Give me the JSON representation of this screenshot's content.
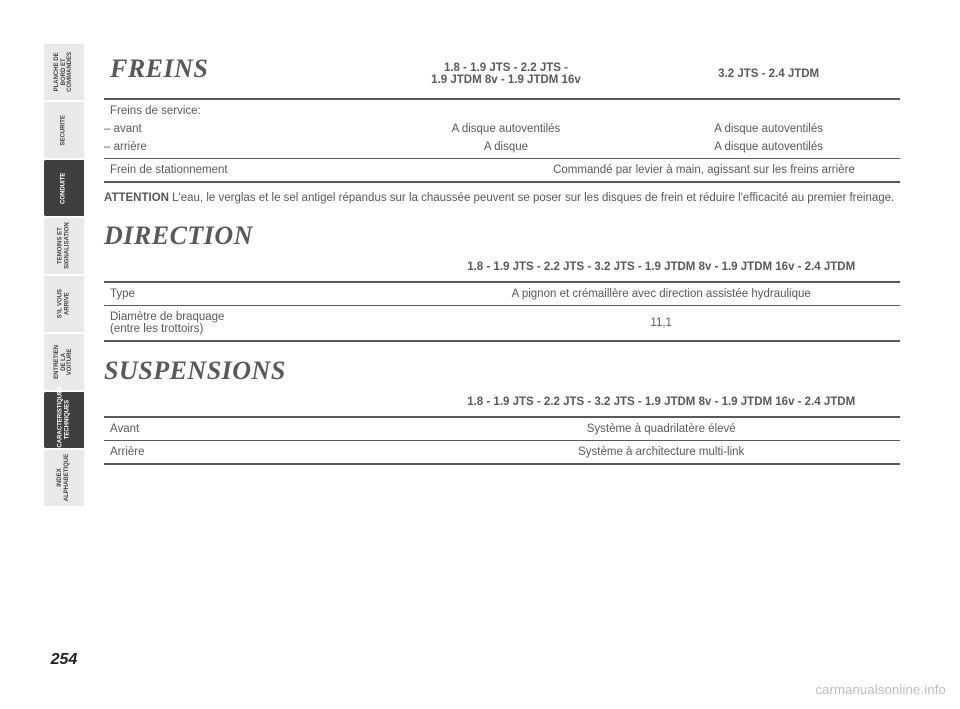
{
  "page_number": "254",
  "watermark": "carmanualsonline.info",
  "tabs": [
    {
      "label": "PLANCHE DE\nBORD ET\nCOMMANDES",
      "active": false
    },
    {
      "label": "SECURITE",
      "active": false
    },
    {
      "label": "CONDUITE",
      "active": true
    },
    {
      "label": "TEMOINS ET\nSIGNALISATION",
      "active": false
    },
    {
      "label": "S'IL VOUS\nARRIVE",
      "active": false
    },
    {
      "label": "ENTRETIEN\nDE LA VOITURE",
      "active": false
    },
    {
      "label": "CARACTERISTIQUES\nTECHNIQUES",
      "active": true
    },
    {
      "label": "INDEX\nALPHABETIQUE",
      "active": false
    }
  ],
  "freins": {
    "title": "FREINS",
    "head": [
      "",
      "1.8 - 1.9 JTS - 2.2 JTS -\n1.9 JTDM 8v - 1.9 JTDM 16v",
      "3.2 JTS - 2.4 JTDM"
    ],
    "rows": [
      {
        "label": "Freins de service:",
        "c2": "",
        "c3": ""
      },
      {
        "label": "– avant",
        "c2": "A disque autoventilés",
        "c3": "A disque autoventilés"
      },
      {
        "label": "– arrière",
        "c2": "A disque",
        "c3": "A disque autoventilés"
      }
    ],
    "park": {
      "label": "Frein de stationnement",
      "value": "Commandé par levier à main, agissant sur les freins arrière"
    },
    "note_bold": "ATTENTION",
    "note_text": " L'eau, le verglas et le sel antigel répandus sur la chaussée peuvent se poser sur les disques de frein et réduire l'efficacité au premier freinage."
  },
  "direction": {
    "title": "DIRECTION",
    "head": [
      "",
      "1.8 - 1.9 JTS - 2.2 JTS - 3.2 JTS - 1.9 JTDM 8v - 1.9 JTDM 16v - 2.4 JTDM"
    ],
    "rows": [
      {
        "label": "Type",
        "value": "A pignon et crémaillère avec direction assistée hydraulique"
      },
      {
        "label": "Diamètre de braquage\n(entre les trottoirs)",
        "value": "11,1"
      }
    ]
  },
  "suspensions": {
    "title": "SUSPENSIONS",
    "head": [
      "",
      "1.8 - 1.9 JTS - 2.2 JTS - 3.2 JTS - 1.9 JTDM 8v - 1.9 JTDM 16v - 2.4 JTDM"
    ],
    "rows": [
      {
        "label": "Avant",
        "value": "Système à quadrilatère élevé"
      },
      {
        "label": "Arrière",
        "value": "Système à architecture multi-link"
      }
    ]
  },
  "style": {
    "text_color": "#595959",
    "rule_color": "#595959",
    "tab_bg": "#e9e9e9",
    "tab_active_bg": "#3f3f3f",
    "h1_fontsize": 26,
    "body_fontsize": 11.5,
    "watermark_color": "#bdbdbd"
  }
}
